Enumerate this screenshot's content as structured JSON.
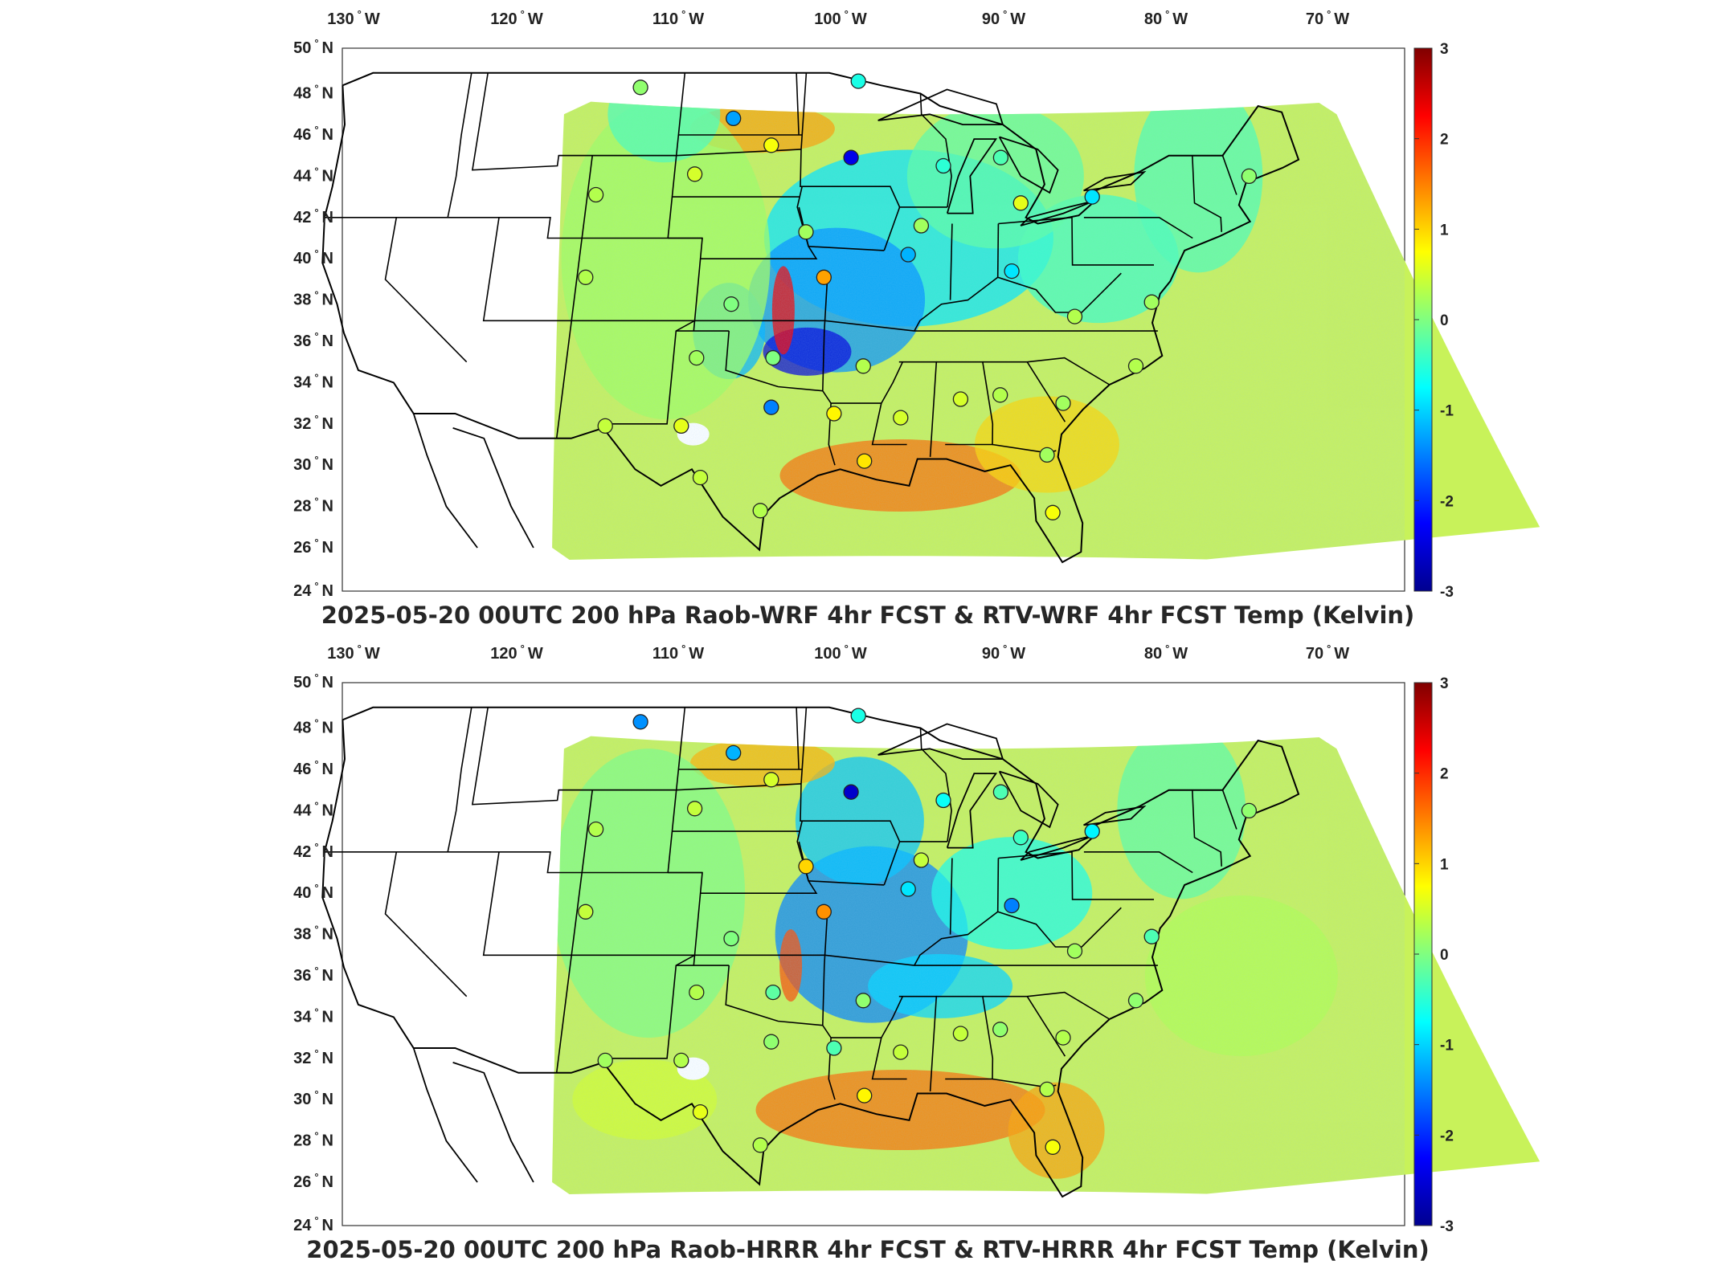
{
  "colors": {
    "colormap": [
      "#00008f",
      "#0000ff",
      "#0080ff",
      "#00ffff",
      "#80ff80",
      "#ffff00",
      "#ff8000",
      "#ff0000",
      "#800000"
    ],
    "base_field": "#c8f25a",
    "land_outline": "#000000"
  },
  "panels": [
    {
      "id": "top",
      "title": "2025-05-20 00UTC 200 hPa Raob-WRF 4hr FCST & RTV-WRF 4hr FCST Temp (Kelvin)",
      "lon_ticks": [
        "130",
        "120",
        "110",
        "100",
        "90",
        "80",
        "70"
      ],
      "lat_ticks": [
        "50",
        "48",
        "46",
        "44",
        "42",
        "40",
        "38",
        "36",
        "34",
        "32",
        "30",
        "28",
        "26",
        "24"
      ],
      "lon_suffix": "W",
      "lat_suffix": "N",
      "colorbar": {
        "min": -3,
        "max": 3,
        "ticks": [
          "3",
          "2",
          "1",
          "0",
          "-1",
          "-2",
          "-3"
        ]
      },
      "stations": [
        {
          "lon": -106.6,
          "lat": 48.3,
          "value": 0.1
        },
        {
          "lon": -100.8,
          "lat": 46.8,
          "value": -1.3
        },
        {
          "lon": -93.4,
          "lat": 48.6,
          "value": -0.6
        },
        {
          "lon": -98.4,
          "lat": 45.5,
          "value": 0.7
        },
        {
          "lon": -93.6,
          "lat": 44.9,
          "value": -2.4
        },
        {
          "lon": -88.1,
          "lat": 44.5,
          "value": -0.5
        },
        {
          "lon": -84.7,
          "lat": 44.9,
          "value": -0.3
        },
        {
          "lon": -102.8,
          "lat": 44.1,
          "value": 0.5
        },
        {
          "lon": -108.5,
          "lat": 43.1,
          "value": 0.3
        },
        {
          "lon": -83.5,
          "lat": 42.7,
          "value": 0.6
        },
        {
          "lon": -79.3,
          "lat": 43.0,
          "value": -0.9
        },
        {
          "lon": -96.0,
          "lat": 41.3,
          "value": 0.2
        },
        {
          "lon": -89.3,
          "lat": 41.6,
          "value": 0.2
        },
        {
          "lon": -70.0,
          "lat": 44.0,
          "value": 0.1
        },
        {
          "lon": -90.0,
          "lat": 40.2,
          "value": -1.2
        },
        {
          "lon": -84.0,
          "lat": 39.4,
          "value": -0.9
        },
        {
          "lon": -108.5,
          "lat": 39.1,
          "value": 0.3
        },
        {
          "lon": -94.8,
          "lat": 39.1,
          "value": 1.3
        },
        {
          "lon": -100.0,
          "lat": 37.8,
          "value": 0.0
        },
        {
          "lon": -80.4,
          "lat": 37.2,
          "value": 0.3
        },
        {
          "lon": -76.0,
          "lat": 37.9,
          "value": 0.2
        },
        {
          "lon": -101.7,
          "lat": 35.2,
          "value": 0.2
        },
        {
          "lon": -97.4,
          "lat": 35.2,
          "value": 0.0
        },
        {
          "lon": -92.3,
          "lat": 34.8,
          "value": 0.3
        },
        {
          "lon": -77.0,
          "lat": 34.8,
          "value": 0.3
        },
        {
          "lon": -86.8,
          "lat": 33.2,
          "value": 0.5
        },
        {
          "lon": -84.6,
          "lat": 33.4,
          "value": 0.3
        },
        {
          "lon": -81.1,
          "lat": 33.0,
          "value": 0.2
        },
        {
          "lon": -97.3,
          "lat": 32.8,
          "value": -1.5
        },
        {
          "lon": -93.8,
          "lat": 32.5,
          "value": 0.8
        },
        {
          "lon": -90.1,
          "lat": 32.3,
          "value": 0.5
        },
        {
          "lon": -106.4,
          "lat": 31.9,
          "value": 0.4
        },
        {
          "lon": -102.2,
          "lat": 31.9,
          "value": 0.6
        },
        {
          "lon": -92.0,
          "lat": 30.2,
          "value": 0.9
        },
        {
          "lon": -82.0,
          "lat": 30.5,
          "value": 0.2
        },
        {
          "lon": -100.9,
          "lat": 29.4,
          "value": 0.4
        },
        {
          "lon": -97.5,
          "lat": 27.8,
          "value": 0.3
        },
        {
          "lon": -81.7,
          "lat": 27.7,
          "value": 0.7
        }
      ]
    },
    {
      "id": "bottom",
      "title": "2025-05-20 00UTC 200 hPa Raob-HRRR 4hr FCST & RTV-HRRR 4hr FCST Temp (Kelvin)",
      "lon_ticks": [
        "130",
        "120",
        "110",
        "100",
        "90",
        "80",
        "70"
      ],
      "lat_ticks": [
        "50",
        "48",
        "46",
        "44",
        "42",
        "40",
        "38",
        "36",
        "34",
        "32",
        "30",
        "28",
        "26",
        "24"
      ],
      "lon_suffix": "W",
      "lat_suffix": "N",
      "colorbar": {
        "min": -3,
        "max": 3,
        "ticks": [
          "3",
          "2",
          "1",
          "0",
          "-1",
          "-2",
          "-3"
        ]
      },
      "stations": [
        {
          "lon": -106.6,
          "lat": 48.3,
          "value": -1.4
        },
        {
          "lon": -100.8,
          "lat": 46.8,
          "value": -1.2
        },
        {
          "lon": -93.4,
          "lat": 48.6,
          "value": -0.6
        },
        {
          "lon": -98.4,
          "lat": 45.5,
          "value": 0.5
        },
        {
          "lon": -93.6,
          "lat": 44.9,
          "value": -2.6
        },
        {
          "lon": -88.1,
          "lat": 44.5,
          "value": -0.7
        },
        {
          "lon": -84.7,
          "lat": 44.9,
          "value": -0.3
        },
        {
          "lon": -102.8,
          "lat": 44.1,
          "value": 0.4
        },
        {
          "lon": -108.5,
          "lat": 43.1,
          "value": 0.3
        },
        {
          "lon": -83.5,
          "lat": 42.7,
          "value": -0.4
        },
        {
          "lon": -79.3,
          "lat": 43.0,
          "value": -0.8
        },
        {
          "lon": -96.0,
          "lat": 41.3,
          "value": 1.0
        },
        {
          "lon": -89.3,
          "lat": 41.6,
          "value": 0.4
        },
        {
          "lon": -70.0,
          "lat": 44.0,
          "value": 0.1
        },
        {
          "lon": -90.0,
          "lat": 40.2,
          "value": -0.9
        },
        {
          "lon": -84.0,
          "lat": 39.4,
          "value": -1.5
        },
        {
          "lon": -108.5,
          "lat": 39.1,
          "value": 0.4
        },
        {
          "lon": -94.8,
          "lat": 39.1,
          "value": 1.4
        },
        {
          "lon": -100.0,
          "lat": 37.8,
          "value": 0.0
        },
        {
          "lon": -80.4,
          "lat": 37.2,
          "value": 0.2
        },
        {
          "lon": -76.0,
          "lat": 37.9,
          "value": -0.3
        },
        {
          "lon": -101.7,
          "lat": 35.2,
          "value": 0.3
        },
        {
          "lon": -97.4,
          "lat": 35.2,
          "value": -0.2
        },
        {
          "lon": -92.3,
          "lat": 34.8,
          "value": 0.1
        },
        {
          "lon": -77.0,
          "lat": 34.8,
          "value": 0.1
        },
        {
          "lon": -86.8,
          "lat": 33.2,
          "value": 0.4
        },
        {
          "lon": -84.6,
          "lat": 33.4,
          "value": 0.1
        },
        {
          "lon": -81.1,
          "lat": 33.0,
          "value": 0.3
        },
        {
          "lon": -97.3,
          "lat": 32.8,
          "value": 0.1
        },
        {
          "lon": -93.8,
          "lat": 32.5,
          "value": -0.3
        },
        {
          "lon": -90.1,
          "lat": 32.3,
          "value": 0.4
        },
        {
          "lon": -106.4,
          "lat": 31.9,
          "value": 0.2
        },
        {
          "lon": -102.2,
          "lat": 31.9,
          "value": 0.3
        },
        {
          "lon": -92.0,
          "lat": 30.2,
          "value": 0.8
        },
        {
          "lon": -82.0,
          "lat": 30.5,
          "value": 0.3
        },
        {
          "lon": -100.9,
          "lat": 29.4,
          "value": 0.6
        },
        {
          "lon": -97.5,
          "lat": 27.8,
          "value": 0.3
        },
        {
          "lon": -81.7,
          "lat": 27.7,
          "value": 0.7
        }
      ]
    }
  ]
}
